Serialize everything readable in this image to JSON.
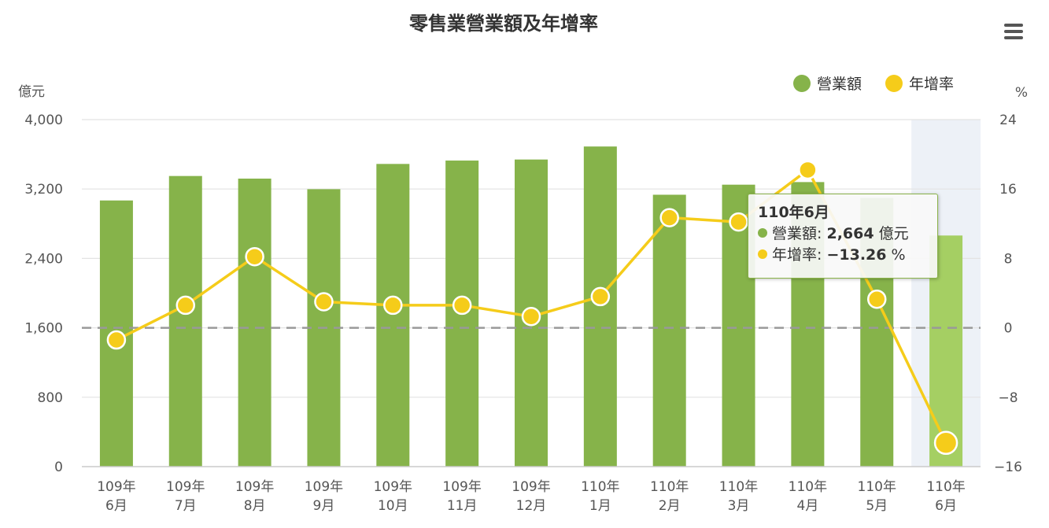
{
  "chart_data": {
    "type": "bar+line",
    "title": "零售業營業額及年增率",
    "categories": [
      [
        "109年",
        "6月"
      ],
      [
        "109年",
        "7月"
      ],
      [
        "109年",
        "8月"
      ],
      [
        "109年",
        "9月"
      ],
      [
        "109年",
        "10月"
      ],
      [
        "109年",
        "11月"
      ],
      [
        "109年",
        "12月"
      ],
      [
        "110年",
        "1月"
      ],
      [
        "110年",
        "2月"
      ],
      [
        "110年",
        "3月"
      ],
      [
        "110年",
        "4月"
      ],
      [
        "110年",
        "5月"
      ],
      [
        "110年",
        "6月"
      ]
    ],
    "series": [
      {
        "name": "營業額",
        "type": "bar",
        "axis": "left",
        "color": "#86b34a",
        "highlight_color": "#a5cf63",
        "values": [
          3068,
          3350,
          3320,
          3198,
          3489,
          3528,
          3540,
          3690,
          3134,
          3250,
          3280,
          3097,
          2664
        ]
      },
      {
        "name": "年增率",
        "type": "line",
        "axis": "right",
        "color": "#f5cc1a",
        "values": [
          -1.4,
          2.6,
          8.2,
          3.0,
          2.6,
          2.6,
          1.3,
          3.6,
          12.7,
          12.2,
          18.2,
          3.3,
          -13.26
        ]
      }
    ],
    "y_left": {
      "label": "億元",
      "range": [
        0,
        4000
      ],
      "ticks": [
        0,
        800,
        1600,
        2400,
        3200,
        4000
      ],
      "tick_labels": [
        "0",
        "800",
        "1,600",
        "2,400",
        "3,200",
        "4,000"
      ]
    },
    "y_right": {
      "label": "%",
      "range": [
        -16,
        24
      ],
      "ticks": [
        -16,
        -8,
        0,
        8,
        16,
        24
      ],
      "tick_labels": [
        "−16",
        "−8",
        "0",
        "8",
        "16",
        "24"
      ]
    },
    "reference_line": {
      "axis": "right",
      "value": 0,
      "style": "dashed",
      "color": "#999999"
    },
    "highlighted_index": 12,
    "grid": "horizontal",
    "legend_position": "top-right"
  },
  "legend": {
    "items": [
      {
        "label": "營業額",
        "color": "#86b34a"
      },
      {
        "label": "年增率",
        "color": "#f5cc1a"
      }
    ]
  },
  "tooltip": {
    "title": "110年6月",
    "rows": [
      {
        "name": "營業額",
        "value": "2,664",
        "unit": "億元",
        "color": "#86b34a"
      },
      {
        "name": "年增率",
        "value": "−13.26",
        "unit": "%",
        "color": "#f5cc1a"
      }
    ]
  },
  "menu": {
    "icon": "hamburger-menu-icon"
  }
}
